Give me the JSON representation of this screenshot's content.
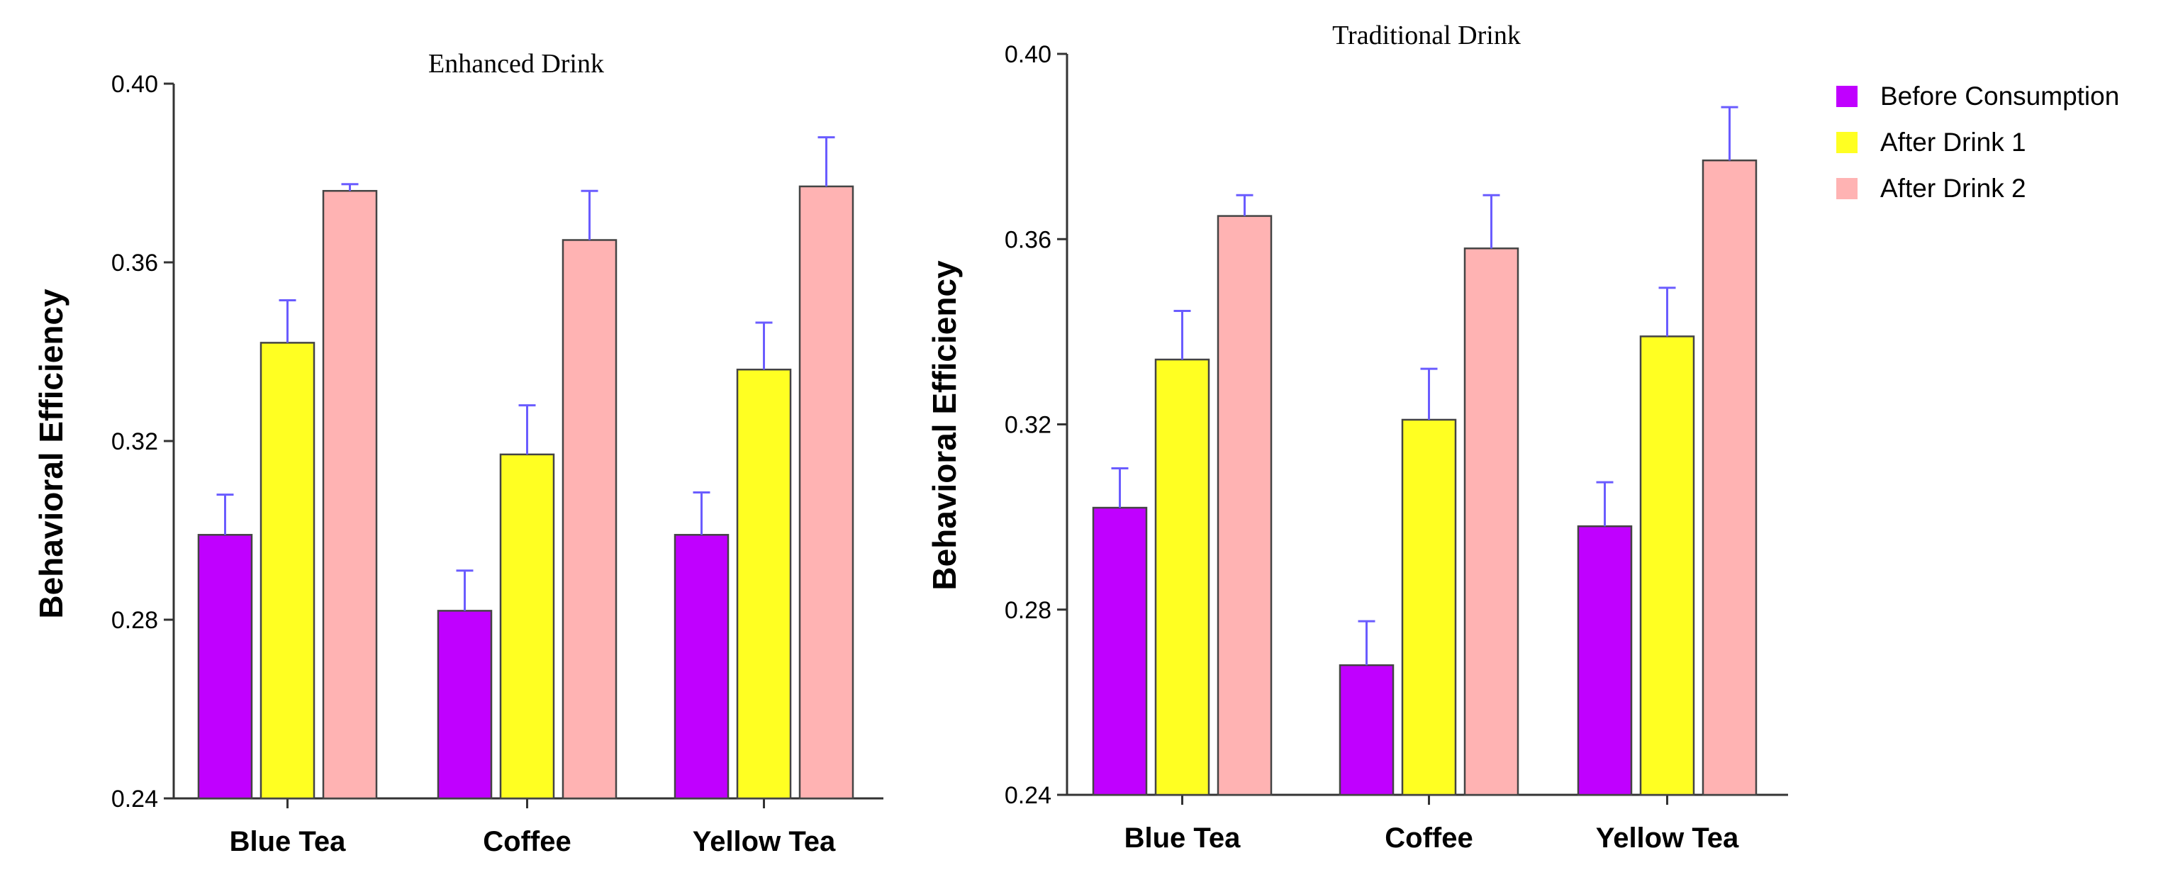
{
  "chart_data": [
    {
      "type": "bar",
      "title": "Enhanced Drink",
      "ylabel": "Behavioral Efficiency",
      "xlabel": "",
      "ylim": [
        0.24,
        0.4
      ],
      "yticks": [
        "0.24",
        "0.28",
        "0.32",
        "0.36",
        "0.40"
      ],
      "categories": [
        "Blue Tea",
        "Coffee",
        "Yellow Tea"
      ],
      "series": [
        {
          "name": "Before Consumption",
          "values": [
            0.299,
            0.282,
            0.299
          ],
          "errors": [
            0.009,
            0.009,
            0.0095
          ]
        },
        {
          "name": "After Drink 1",
          "values": [
            0.342,
            0.317,
            0.336
          ],
          "errors": [
            0.0095,
            0.011,
            0.0105
          ]
        },
        {
          "name": "After Drink 2",
          "values": [
            0.376,
            0.365,
            0.377
          ],
          "errors": [
            0.0015,
            0.011,
            0.011
          ]
        }
      ]
    },
    {
      "type": "bar",
      "title": "Traditional Drink",
      "ylabel": "Behavioral Efficiency",
      "xlabel": "",
      "ylim": [
        0.24,
        0.4
      ],
      "yticks": [
        "0.24",
        "0.28",
        "0.32",
        "0.36",
        "0.40"
      ],
      "categories": [
        "Blue Tea",
        "Coffee",
        "Yellow Tea"
      ],
      "series": [
        {
          "name": "Before Consumption",
          "values": [
            0.302,
            0.268,
            0.298
          ],
          "errors": [
            0.0085,
            0.0095,
            0.0095
          ]
        },
        {
          "name": "After Drink 1",
          "values": [
            0.334,
            0.321,
            0.339
          ],
          "errors": [
            0.0105,
            0.011,
            0.0105
          ]
        },
        {
          "name": "After Drink 2",
          "values": [
            0.365,
            0.358,
            0.377
          ],
          "errors": [
            0.0045,
            0.0115,
            0.0115
          ]
        }
      ]
    }
  ],
  "legend": {
    "position": "top-right",
    "items": [
      "Before Consumption",
      "After Drink 1",
      "After Drink 2"
    ]
  },
  "colors": {
    "Before Consumption": "#c000ff",
    "After Drink 1": "#ffff22",
    "After Drink 2": "#ffb3b3",
    "error_bar": "#6a5cff"
  }
}
